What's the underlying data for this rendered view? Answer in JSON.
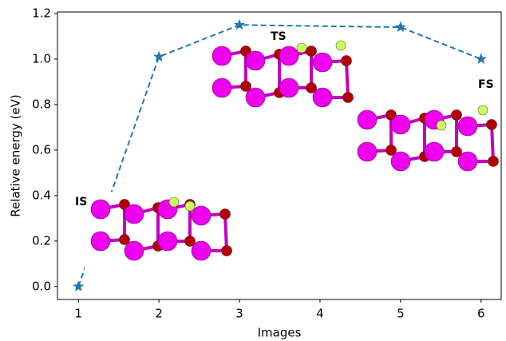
{
  "chart_data": {
    "type": "line",
    "xlabel": "Images",
    "ylabel": "Relative energy (eV)",
    "x": [
      1,
      2,
      3,
      5,
      6
    ],
    "series": [
      {
        "color": "#1f77b4",
        "values": [
          0,
          1.01,
          1.15,
          1.14,
          1.0
        ]
      }
    ],
    "xlim": [
      0.74,
      6.25
    ],
    "ylim": [
      -0.057,
      1.207
    ],
    "xticks": [
      1,
      2,
      3,
      4,
      5,
      6
    ],
    "yticks": [
      {
        "value": 0,
        "label": "0.0"
      },
      0.2,
      0.4,
      0.6,
      0.8,
      {
        "value": 1.0,
        "label": "1.0"
      },
      1.2
    ],
    "annotations": [
      "IS",
      "TS",
      "FS"
    ]
  }
}
